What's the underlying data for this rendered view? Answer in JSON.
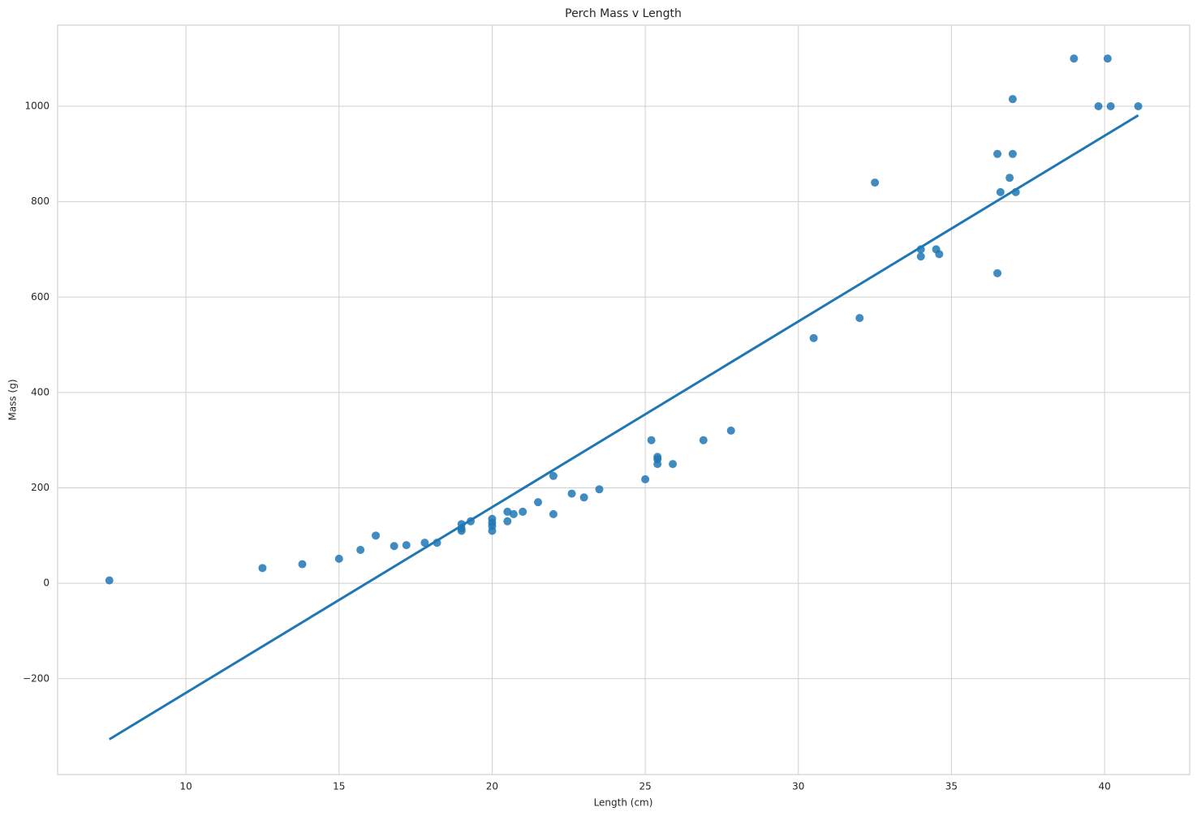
{
  "chart_data": {
    "type": "scatter",
    "title": "Perch Mass v Length",
    "x_label": "Length (cm)",
    "y_label": "Mass (g)",
    "x": [
      7.5,
      12.5,
      13.8,
      15.0,
      15.7,
      16.2,
      16.8,
      17.2,
      17.8,
      18.2,
      19.0,
      19.0,
      19.0,
      19.3,
      20.0,
      20.0,
      20.0,
      20.0,
      20.5,
      20.5,
      20.7,
      21.0,
      21.5,
      22.0,
      22.0,
      22.6,
      23.0,
      23.5,
      25.0,
      25.2,
      25.4,
      25.4,
      25.4,
      25.9,
      26.9,
      27.8,
      30.5,
      32.0,
      32.5,
      34.0,
      34.0,
      34.5,
      34.6,
      36.5,
      36.5,
      36.6,
      36.9,
      37.0,
      37.0,
      37.1,
      39.0,
      39.8,
      40.1,
      40.2,
      41.1
    ],
    "values": [
      6,
      32,
      40,
      51.5,
      70,
      100,
      78,
      80,
      85,
      85,
      124,
      115,
      110,
      130,
      135,
      127,
      120,
      110,
      150,
      130,
      145,
      150,
      170,
      145,
      225,
      188,
      180,
      197,
      218,
      300,
      265,
      260,
      250,
      250,
      300,
      320,
      514,
      556,
      840,
      700,
      685,
      700,
      690,
      650,
      900,
      820,
      850,
      900,
      1015,
      820,
      1100,
      1000,
      1100,
      1000,
      1000
    ],
    "color": "#1f77b4",
    "fit": {
      "x": [
        7.5,
        41.1
      ],
      "y": [
        -327,
        981
      ],
      "color": "#1f77b4"
    },
    "xlim": [
      5.81,
      42.78
    ],
    "ylim": [
      -401,
      1170
    ],
    "xticks": [
      10,
      15,
      20,
      25,
      30,
      35,
      40
    ],
    "yticks": [
      {
        "value": -200,
        "label": "−200"
      },
      0,
      200,
      400,
      600,
      800,
      1000
    ],
    "grid": true
  }
}
